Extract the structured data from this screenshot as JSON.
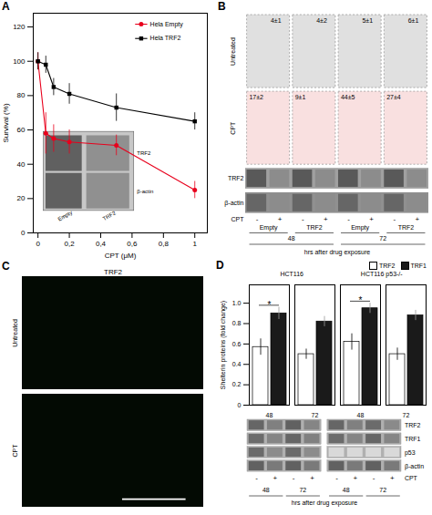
{
  "chart_data": [
    {
      "type": "line",
      "title": "A",
      "xlabel": "CPT (μM)",
      "ylabel": "Survival (%)",
      "xlim": [
        -0.03,
        1.08
      ],
      "ylim": [
        0,
        128
      ],
      "xticks": [
        0,
        {
          "value": 0.2,
          "label": "0,2"
        },
        {
          "value": 0.4,
          "label": "0,4"
        },
        {
          "value": 0.6,
          "label": "0,6"
        },
        {
          "value": 0.8,
          "label": "0,8"
        },
        1
      ],
      "yticks": [
        0,
        20,
        40,
        60,
        80,
        100,
        120
      ],
      "legend": "upper right",
      "x": [
        0,
        0.05,
        0.1,
        0.2,
        0.5,
        1.0
      ],
      "series": [
        {
          "name": "Hela Empty",
          "color": "#e8001c",
          "marker": "circle",
          "values": [
            100,
            58,
            55,
            53,
            51,
            25
          ],
          "errors": [
            5,
            12,
            8,
            7,
            6,
            5
          ]
        },
        {
          "name": "Hela TRF2",
          "color": "#000000",
          "marker": "square",
          "values": [
            100,
            98,
            85,
            81,
            73,
            65
          ],
          "errors": [
            5,
            5,
            5,
            6,
            8,
            5
          ]
        }
      ],
      "blot_rows": [
        "TRF2",
        "β-actin"
      ],
      "blot_lanes": [
        "Empty",
        "TRF2"
      ]
    },
    {
      "type": "panel",
      "title": "B",
      "flow_labels": [
        [
          "4±1",
          "4±2",
          "5±1",
          "6±1"
        ],
        [
          "17±2",
          "9±1",
          "44±5",
          "27±4"
        ]
      ],
      "colors": [
        "#000000",
        "#cc0000"
      ],
      "row_labels": [
        "Untreated",
        "CPT"
      ],
      "blot_rows": [
        "TRF2",
        "β-actin"
      ],
      "blot_sign_label": "CPT",
      "blot_signs": [
        "-",
        "+",
        "-",
        "+",
        "-",
        "+",
        "-",
        "+"
      ],
      "categories": [
        "Empty",
        "TRF2",
        "Empty",
        "TRF2"
      ],
      "time_labels": [
        "48",
        "72"
      ],
      "xlabel": "hrs after drug exposure"
    },
    {
      "type": "image",
      "title": "C",
      "subtitle": "TRF2",
      "row_labels": [
        "Untreated",
        "CPT"
      ]
    },
    {
      "type": "bar",
      "title": "D",
      "ylabel": "Shelterin proteins (fold change)",
      "categories": [
        "48",
        "72",
        "48",
        "72"
      ],
      "series": [
        {
          "name": "TRF2",
          "color": "#ffffff",
          "values": [
            0.57,
            0.5,
            0.62,
            0.5
          ],
          "errors": [
            0.08,
            0.05,
            0.08,
            0.06
          ]
        },
        {
          "name": "TRF1",
          "color": "#1a1a1a",
          "values": [
            0.9,
            0.82,
            0.95,
            0.88
          ],
          "errors": [
            0.06,
            0.05,
            0.05,
            0.05
          ]
        }
      ],
      "ylim": [
        0,
        1.18
      ],
      "yticks": [
        0,
        0.2,
        0.4,
        0.6,
        0.8,
        {
          "value": 1.0,
          "label": "1.0"
        }
      ],
      "legend": "upper right",
      "groups": [
        {
          "name": "HCT116",
          "categories": [
            0,
            1
          ]
        },
        {
          "name": "HCT116 p53-/-",
          "categories": [
            2,
            3
          ]
        }
      ],
      "annotations": [
        {
          "text": "*",
          "category": 0
        },
        {
          "text": "*",
          "category": 2
        }
      ],
      "blot_rows": [
        "TRF2",
        "TRF1",
        "p53",
        "β-actin"
      ],
      "blot_sign_label": "CPT",
      "blot_signs": [
        "-",
        "+",
        "-",
        "+",
        "-",
        "+",
        "-",
        "+"
      ],
      "xlabel": "hrs after drug exposure"
    }
  ]
}
